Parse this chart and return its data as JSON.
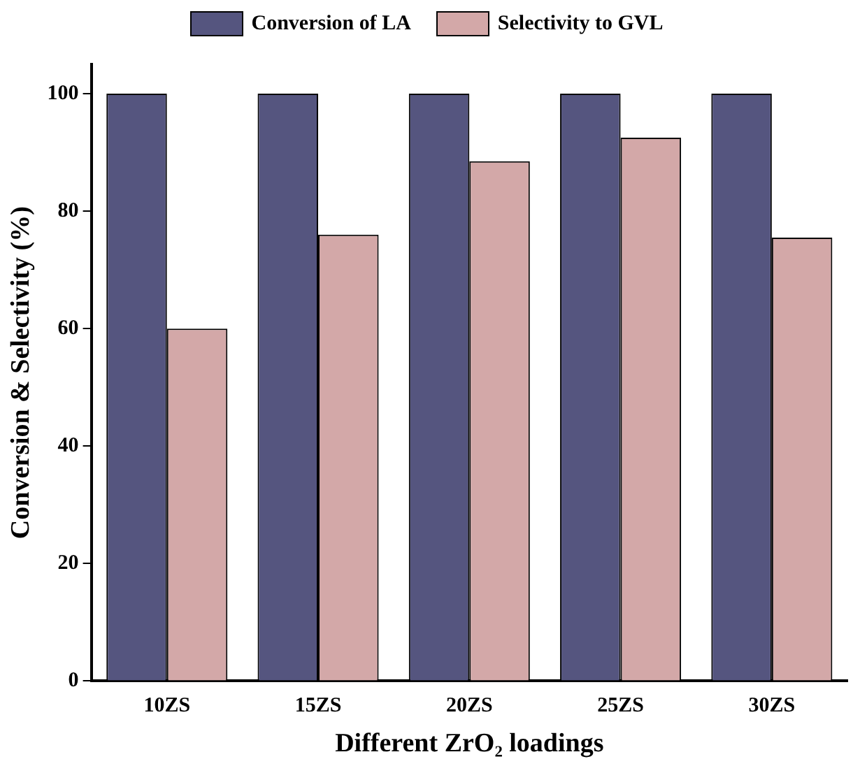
{
  "chart_data": {
    "type": "bar",
    "xlabel": "Different ZrO₂ loadings",
    "ylabel": "Conversion & Selectivity (%)",
    "categories": [
      "10ZS",
      "15ZS",
      "20ZS",
      "25ZS",
      "30ZS"
    ],
    "series": [
      {
        "name": "Conversion of LA",
        "color": "#55557f",
        "values": [
          100,
          100,
          100,
          100,
          100
        ]
      },
      {
        "name": "Selectivity to GVL",
        "color": "#d3a8a8",
        "values": [
          60,
          76,
          88.5,
          92.5,
          75.5
        ]
      }
    ],
    "ylim": [
      0,
      105
    ],
    "yticks": [
      0,
      20,
      40,
      60,
      80,
      100
    ],
    "grid": false,
    "legend": "top"
  }
}
